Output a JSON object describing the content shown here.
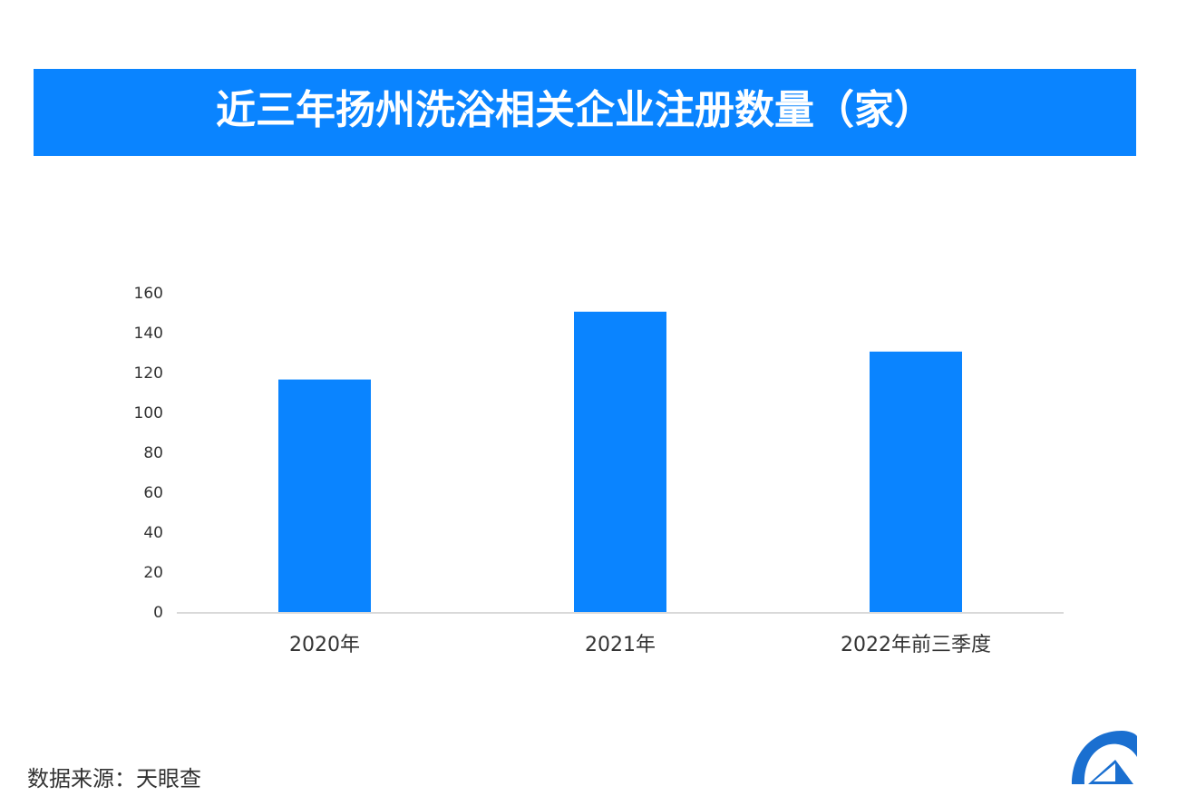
{
  "chart_data": {
    "type": "bar",
    "title": "近三年扬州洗浴相关企业注册数量（家）",
    "categories": [
      "2020年",
      "2021年",
      "2022年前三季度"
    ],
    "values": [
      117,
      151,
      131
    ],
    "color": "#0a84ff",
    "ylim": [
      0,
      160
    ],
    "yticks": [
      0,
      20,
      40,
      60,
      80,
      100,
      120,
      140,
      160
    ],
    "source": "数据来源：天眼查"
  }
}
